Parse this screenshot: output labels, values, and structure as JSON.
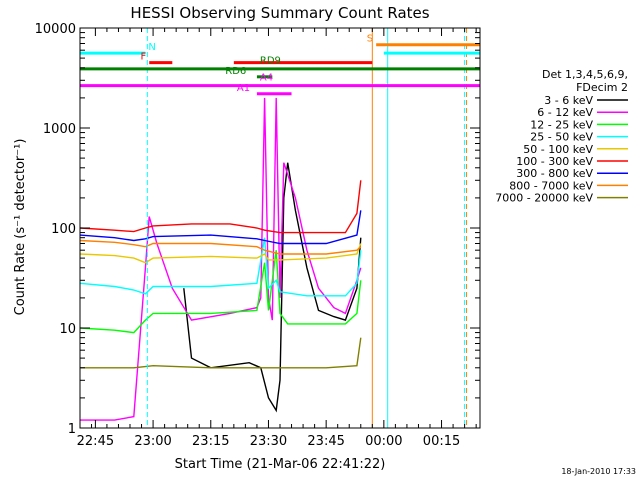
{
  "chart_data": {
    "type": "line",
    "title": "HESSI Observing Summary Count Rates",
    "xlabel": "Start Time (21-Mar-06 22:41:22)",
    "ylabel": "Count Rate (s⁻¹ detector⁻¹)",
    "y_scale": "log",
    "ylim": [
      1,
      10000
    ],
    "xlim_minutes": [
      -4,
      100
    ],
    "x_ticks": [
      {
        "min": 0,
        "label": "22:45"
      },
      {
        "min": 15,
        "label": "23:00"
      },
      {
        "min": 30,
        "label": "23:15"
      },
      {
        "min": 45,
        "label": "23:30"
      },
      {
        "min": 60,
        "label": "23:45"
      },
      {
        "min": 75,
        "label": "00:00"
      },
      {
        "min": 90,
        "label": "00:15"
      }
    ],
    "y_ticks": [
      {
        "value": 1,
        "label": "1"
      },
      {
        "value": 10,
        "label": "10"
      },
      {
        "value": 100,
        "label": "100"
      },
      {
        "value": 1000,
        "label": "1000"
      },
      {
        "value": 10000,
        "label": "10000"
      }
    ],
    "legend_header": [
      "Det 1,3,4,5,6,9,",
      "FDecim 2"
    ],
    "series": [
      {
        "name": "3 - 6 keV",
        "color": "#000000",
        "points": [
          [
            23,
            25
          ],
          [
            25,
            5
          ],
          [
            30,
            4
          ],
          [
            40,
            4.5
          ],
          [
            43,
            4
          ],
          [
            45,
            2
          ],
          [
            47,
            1.5
          ],
          [
            48,
            3
          ],
          [
            49,
            200
          ],
          [
            50,
            450
          ],
          [
            52,
            150
          ],
          [
            55,
            40
          ],
          [
            58,
            15
          ],
          [
            62,
            13
          ],
          [
            65,
            12
          ],
          [
            68,
            25
          ],
          [
            69,
            80
          ]
        ]
      },
      {
        "name": "6 - 12 keV",
        "color": "#ff00ff",
        "points": [
          [
            -4,
            1.2
          ],
          [
            0,
            1.2
          ],
          [
            5,
            1.2
          ],
          [
            10,
            1.3
          ],
          [
            13,
            40
          ],
          [
            14,
            130
          ],
          [
            16,
            70
          ],
          [
            20,
            25
          ],
          [
            25,
            12
          ],
          [
            35,
            14
          ],
          [
            42,
            16
          ],
          [
            43,
            20
          ],
          [
            44,
            2000
          ],
          [
            45,
            20
          ],
          [
            46,
            12
          ],
          [
            47,
            2000
          ],
          [
            48,
            20
          ],
          [
            49,
            450
          ],
          [
            52,
            200
          ],
          [
            55,
            60
          ],
          [
            58,
            25
          ],
          [
            62,
            16
          ],
          [
            65,
            14
          ],
          [
            68,
            30
          ],
          [
            69,
            40
          ]
        ]
      },
      {
        "name": "12 - 25 keV",
        "color": "#00ff00",
        "points": [
          [
            -4,
            10
          ],
          [
            5,
            9.5
          ],
          [
            10,
            9
          ],
          [
            13,
            12
          ],
          [
            15,
            14
          ],
          [
            30,
            14
          ],
          [
            42,
            15
          ],
          [
            44,
            45
          ],
          [
            45,
            15
          ],
          [
            47,
            60
          ],
          [
            48,
            14
          ],
          [
            50,
            11
          ],
          [
            60,
            11
          ],
          [
            65,
            11
          ],
          [
            68,
            14
          ],
          [
            69,
            30
          ]
        ]
      },
      {
        "name": "25 - 50 keV",
        "color": "#00ffff",
        "points": [
          [
            -4,
            28
          ],
          [
            5,
            26
          ],
          [
            10,
            24
          ],
          [
            13,
            22
          ],
          [
            15,
            26
          ],
          [
            30,
            26
          ],
          [
            42,
            28
          ],
          [
            44,
            80
          ],
          [
            45,
            25
          ],
          [
            47,
            30
          ],
          [
            48,
            23
          ],
          [
            55,
            21
          ],
          [
            60,
            21
          ],
          [
            65,
            21
          ],
          [
            68,
            28
          ],
          [
            69,
            60
          ]
        ]
      },
      {
        "name": "50 - 100 keV",
        "color": "#e8c800",
        "points": [
          [
            -4,
            55
          ],
          [
            5,
            53
          ],
          [
            10,
            50
          ],
          [
            13,
            45
          ],
          [
            15,
            50
          ],
          [
            30,
            52
          ],
          [
            42,
            50
          ],
          [
            44,
            55
          ],
          [
            45,
            48
          ],
          [
            48,
            48
          ],
          [
            60,
            50
          ],
          [
            68,
            55
          ],
          [
            69,
            70
          ]
        ]
      },
      {
        "name": "100 - 300 keV",
        "color": "#ff0000",
        "points": [
          [
            -4,
            100
          ],
          [
            5,
            95
          ],
          [
            10,
            92
          ],
          [
            13,
            100
          ],
          [
            15,
            105
          ],
          [
            25,
            110
          ],
          [
            35,
            110
          ],
          [
            42,
            100
          ],
          [
            44,
            95
          ],
          [
            48,
            90
          ],
          [
            55,
            90
          ],
          [
            65,
            90
          ],
          [
            68,
            140
          ],
          [
            69,
            300
          ]
        ]
      },
      {
        "name": "300 - 800 keV",
        "color": "#0000ff",
        "points": [
          [
            -4,
            85
          ],
          [
            5,
            80
          ],
          [
            10,
            75
          ],
          [
            13,
            78
          ],
          [
            15,
            82
          ],
          [
            30,
            85
          ],
          [
            42,
            78
          ],
          [
            44,
            75
          ],
          [
            48,
            70
          ],
          [
            60,
            70
          ],
          [
            68,
            85
          ],
          [
            69,
            150
          ]
        ]
      },
      {
        "name": "800 - 7000 keV",
        "color": "#ff8000",
        "points": [
          [
            -4,
            75
          ],
          [
            5,
            72
          ],
          [
            10,
            68
          ],
          [
            13,
            65
          ],
          [
            15,
            70
          ],
          [
            30,
            70
          ],
          [
            42,
            65
          ],
          [
            44,
            60
          ],
          [
            48,
            55
          ],
          [
            60,
            55
          ],
          [
            68,
            60
          ],
          [
            69,
            65
          ]
        ]
      },
      {
        "name": "7000 - 20000 keV",
        "color": "#808000",
        "points": [
          [
            -4,
            4
          ],
          [
            5,
            4
          ],
          [
            10,
            4
          ],
          [
            15,
            4.2
          ],
          [
            30,
            4
          ],
          [
            45,
            4
          ],
          [
            60,
            4
          ],
          [
            68,
            4.2
          ],
          [
            69,
            8
          ]
        ]
      }
    ],
    "flags": [
      {
        "label": "N",
        "color": "#00ffff",
        "level": 5600,
        "segments": [
          [
            -4,
            13
          ],
          [
            75,
            100
          ]
        ]
      },
      {
        "label": "F",
        "color": "#ff0000",
        "level": 4500,
        "segments": [
          [
            14,
            20
          ]
        ]
      },
      {
        "label": "S",
        "color": "#ff8000",
        "level": 6800,
        "segments": [
          [
            73,
            100
          ]
        ]
      },
      {
        "label": "",
        "color": "#ff0000",
        "level": 4500,
        "segments": [
          [
            36,
            72
          ]
        ]
      },
      {
        "label": "",
        "color": "#008000",
        "level": 3900,
        "segments": [
          [
            -4,
            100
          ]
        ]
      },
      {
        "label": "RD9",
        "color": "#008000",
        "level": 3900,
        "segments": [],
        "text_at": 45.5,
        "text_level": 4100
      },
      {
        "label": "RD6",
        "color": "#008000",
        "level": 3250,
        "segments": [
          [
            42,
            46
          ]
        ],
        "text_at": 36.5
      },
      {
        "label": "",
        "color": "#ff00ff",
        "level": 2650,
        "segments": [
          [
            -4,
            100
          ]
        ]
      },
      {
        "label": "A1",
        "color": "#ff00ff",
        "level": 2200,
        "segments": [
          [
            42,
            51
          ]
        ],
        "text_at": 38.5
      },
      {
        "label": "A4",
        "color": "#ff00ff",
        "level": 2800,
        "segments": [],
        "text_at": 44.5
      }
    ],
    "vlines": [
      {
        "min": 13.5,
        "color": "#00ffff",
        "dash": true
      },
      {
        "min": 72,
        "color": "#ff8000",
        "dash": false
      },
      {
        "min": 76,
        "color": "#00ffff",
        "dash": false
      },
      {
        "min": 96,
        "color": "#00ffff",
        "dash": true
      },
      {
        "min": 96.5,
        "color": "#ff8000",
        "dash": true
      }
    ],
    "footer_date": "18-Jan-2010 17:33"
  }
}
